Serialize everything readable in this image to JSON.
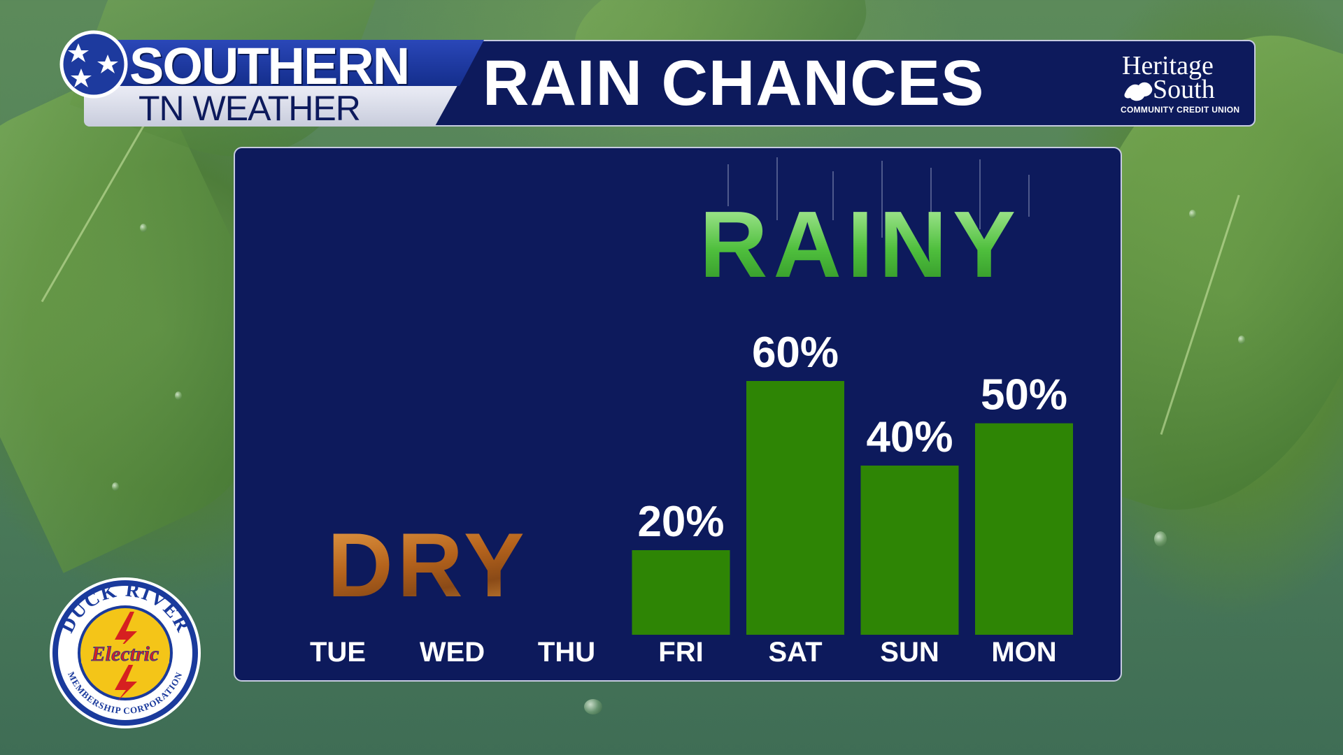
{
  "header": {
    "brand_line1": "SOUTHERN",
    "brand_line2": "TN WEATHER",
    "title": "RAIN CHANCES"
  },
  "sponsor_top": {
    "line1": "Heritage",
    "line2": "South",
    "line3": "COMMUNITY CREDIT UNION"
  },
  "sponsor_bottom": {
    "ring_top": "DUCK RIVER",
    "center": "Electric",
    "ring_bottom": "MEMBERSHIP CORPORATION"
  },
  "labels": {
    "rainy": "RAINY",
    "dry": "DRY"
  },
  "colors": {
    "panel": "#0d1a5c",
    "bar": "#2e8505",
    "text": "#ffffff"
  },
  "chart_data": {
    "type": "bar",
    "categories": [
      "TUE",
      "WED",
      "THU",
      "FRI",
      "SAT",
      "SUN",
      "MON"
    ],
    "values": [
      null,
      null,
      null,
      20,
      60,
      40,
      50
    ],
    "value_labels": [
      "",
      "",
      "",
      "20%",
      "60%",
      "40%",
      "50%"
    ],
    "title": "RAIN CHANCES",
    "xlabel": "",
    "ylabel": "",
    "ylim": [
      0,
      100
    ],
    "grid": false,
    "legend": "none"
  }
}
